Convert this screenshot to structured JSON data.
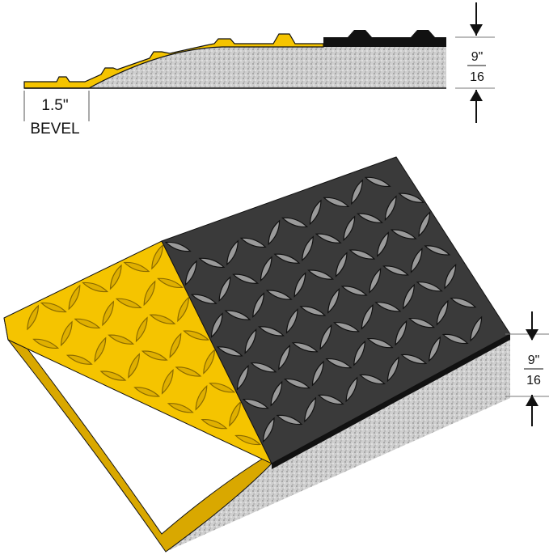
{
  "cross_section": {
    "bevel_width": "1.5\"",
    "bevel_label": "BEVEL",
    "thickness_numerator": "9\"",
    "thickness_denominator": "16"
  },
  "mat_view": {
    "thickness_numerator": "9\"",
    "thickness_denominator": "16"
  },
  "colors": {
    "yellow": "#f5c400",
    "black_surface": "#3a3a3a",
    "foam": "#c8c8c8",
    "outline": "#111111"
  }
}
